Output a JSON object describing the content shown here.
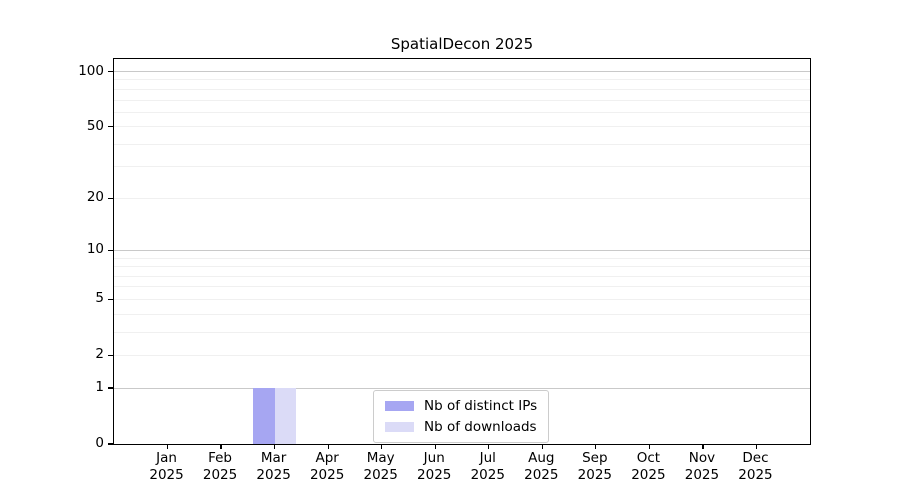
{
  "chart_data": {
    "type": "bar",
    "title": "SpatialDecon 2025",
    "xlabel": "",
    "ylabel": "",
    "categories": [
      "Jan",
      "Feb",
      "Mar",
      "Apr",
      "May",
      "Jun",
      "Jul",
      "Aug",
      "Sep",
      "Oct",
      "Nov",
      "Dec"
    ],
    "x_year_labels": [
      "2025",
      "2025",
      "2025",
      "2025",
      "2025",
      "2025",
      "2025",
      "2025",
      "2025",
      "2025",
      "2025",
      "2025"
    ],
    "series": [
      {
        "name": "Nb of distinct IPs",
        "color": "#a6a6f2",
        "values": [
          0,
          0,
          1,
          0,
          0,
          0,
          0,
          0,
          0,
          0,
          0,
          0
        ]
      },
      {
        "name": "Nb of downloads",
        "color": "#dbdbf7",
        "values": [
          0,
          0,
          1,
          0,
          0,
          0,
          0,
          0,
          0,
          0,
          0,
          0
        ]
      }
    ],
    "y_scale": "log1p",
    "y_ticks": [
      0,
      1,
      2,
      5,
      10,
      20,
      50,
      100
    ],
    "y_major_gridlines": [
      1,
      10,
      100
    ],
    "y_minor_gridlines": [
      2,
      3,
      4,
      5,
      6,
      7,
      8,
      9,
      20,
      30,
      40,
      50,
      60,
      70,
      80,
      90
    ],
    "ylim": [
      0,
      117
    ],
    "xlim": [
      -1,
      12
    ],
    "bar_half_width": 0.4,
    "grid": true,
    "legend_position": "lower center"
  },
  "colors": {
    "axis": "#000000",
    "grid_major": "#c9c9c9",
    "grid_minor": "#f0f0f0",
    "legend_border": "#cccccc",
    "background": "#ffffff"
  }
}
